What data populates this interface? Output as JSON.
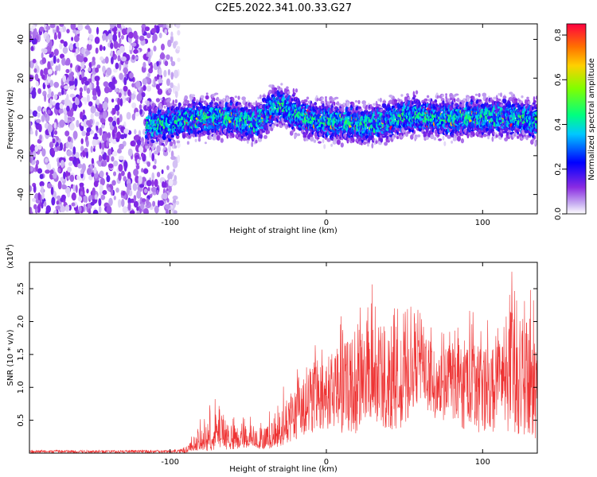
{
  "title": "C2E5.2022.341.00.33.G27",
  "chart_data": [
    {
      "type": "heatmap",
      "xlabel": "Height of straight line (km)",
      "ylabel": "Frequency (Hz)",
      "xlim": [
        -190,
        135
      ],
      "ylim": [
        -50,
        48
      ],
      "x_ticks": [
        -100,
        0,
        100
      ],
      "y_ticks": [
        -40,
        -20,
        0,
        20,
        40
      ],
      "colorbar": {
        "label": "Normalized spectral amplitude",
        "range": [
          0.0,
          0.85
        ],
        "ticks": [
          "0.0",
          "0.2",
          "0.4",
          "0.6",
          "0.8"
        ],
        "colors": [
          "#ffffff",
          "#cbb4f2",
          "#8a2be2",
          "#0000ff",
          "#00c8ff",
          "#00ff80",
          "#80ff00",
          "#ffd000",
          "#ff7000",
          "#ff0040"
        ]
      },
      "noise_region": {
        "x_from": -190,
        "x_to": -95,
        "max_amplitude": 0.15
      },
      "ridge": [
        {
          "x": -115,
          "f": -5
        },
        {
          "x": -100,
          "f": -3
        },
        {
          "x": -80,
          "f": 0
        },
        {
          "x": -60,
          "f": -1
        },
        {
          "x": -45,
          "f": -3
        },
        {
          "x": -35,
          "f": 4
        },
        {
          "x": -30,
          "f": 6
        },
        {
          "x": -20,
          "f": 2
        },
        {
          "x": -10,
          "f": -1
        },
        {
          "x": 0,
          "f": -2
        },
        {
          "x": 10,
          "f": -3
        },
        {
          "x": 25,
          "f": -4
        },
        {
          "x": 40,
          "f": -2
        },
        {
          "x": 55,
          "f": 1
        },
        {
          "x": 70,
          "f": 0
        },
        {
          "x": 85,
          "f": -1
        },
        {
          "x": 100,
          "f": 0
        },
        {
          "x": 115,
          "f": 0
        },
        {
          "x": 135,
          "f": -2
        }
      ]
    },
    {
      "type": "line",
      "xlabel": "Height of straight line (km)",
      "ylabel": "SNR (10 * v/v)",
      "y_exponent_label": "(x10",
      "y_exponent_power": "4",
      "y_exponent_close": ")",
      "xlim": [
        -190,
        135
      ],
      "ylim": [
        0.0,
        2.9
      ],
      "x_ticks": [
        -100,
        0,
        100
      ],
      "y_ticks": [
        "0.5",
        "1.0",
        "1.5",
        "2.0",
        "2.5"
      ],
      "line_color": "#ee3333",
      "series": [
        {
          "x": [
            -190,
            -100,
            -90,
            -80,
            -70,
            -60,
            -50,
            -40,
            -30,
            -20,
            -10,
            0,
            10,
            20,
            30,
            40,
            50,
            60,
            70,
            80,
            90,
            100,
            110,
            120,
            135
          ],
          "mean": [
            0.03,
            0.03,
            0.05,
            0.15,
            0.25,
            0.18,
            0.22,
            0.12,
            0.3,
            0.6,
            0.75,
            0.85,
            0.95,
            1.05,
            1.0,
            1.0,
            1.05,
            1.4,
            1.15,
            1.1,
            1.0,
            1.05,
            1.1,
            1.1,
            1.05
          ],
          "max": [
            0.05,
            0.05,
            0.1,
            0.55,
            0.9,
            0.55,
            0.6,
            0.55,
            0.9,
            1.4,
            1.7,
            1.9,
            2.1,
            2.5,
            2.6,
            2.4,
            2.2,
            2.3,
            1.8,
            1.95,
            2.3,
            2.0,
            2.2,
            2.85,
            2.4
          ],
          "min": [
            0.0,
            0.0,
            0.0,
            0.02,
            0.05,
            0.05,
            0.08,
            0.05,
            0.1,
            0.2,
            0.3,
            0.35,
            0.3,
            0.3,
            0.4,
            0.35,
            0.4,
            0.8,
            0.5,
            0.4,
            0.35,
            0.3,
            0.3,
            0.3,
            0.2
          ]
        }
      ]
    }
  ]
}
